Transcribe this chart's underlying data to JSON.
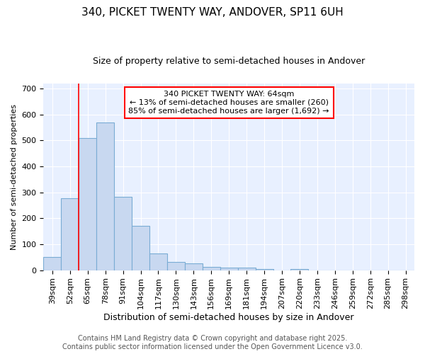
{
  "title1": "340, PICKET TWENTY WAY, ANDOVER, SP11 6UH",
  "title2": "Size of property relative to semi-detached houses in Andover",
  "xlabel": "Distribution of semi-detached houses by size in Andover",
  "ylabel": "Number of semi-detached properties",
  "categories": [
    "39sqm",
    "52sqm",
    "65sqm",
    "78sqm",
    "91sqm",
    "104sqm",
    "117sqm",
    "130sqm",
    "143sqm",
    "156sqm",
    "169sqm",
    "181sqm",
    "194sqm",
    "207sqm",
    "220sqm",
    "233sqm",
    "246sqm",
    "259sqm",
    "272sqm",
    "285sqm",
    "298sqm"
  ],
  "values": [
    52,
    278,
    510,
    568,
    283,
    170,
    65,
    33,
    25,
    12,
    10,
    10,
    5,
    0,
    5,
    0,
    0,
    0,
    0,
    0,
    0
  ],
  "bar_color": "#c8d8f0",
  "bar_edge_color": "#7aacd4",
  "vline_color": "red",
  "annotation_text": "340 PICKET TWENTY WAY: 64sqm\n← 13% of semi-detached houses are smaller (260)\n85% of semi-detached houses are larger (1,692) →",
  "annotation_box_color": "white",
  "annotation_box_edge": "red",
  "ylim": [
    0,
    720
  ],
  "yticks": [
    0,
    100,
    200,
    300,
    400,
    500,
    600,
    700
  ],
  "footer1": "Contains HM Land Registry data © Crown copyright and database right 2025.",
  "footer2": "Contains public sector information licensed under the Open Government Licence v3.0.",
  "bg_color": "#ffffff",
  "plot_bg_color": "#e8f0ff",
  "title1_fontsize": 11,
  "title2_fontsize": 9,
  "xlabel_fontsize": 9,
  "ylabel_fontsize": 8,
  "tick_fontsize": 8,
  "annotation_fontsize": 8,
  "footer_fontsize": 7
}
